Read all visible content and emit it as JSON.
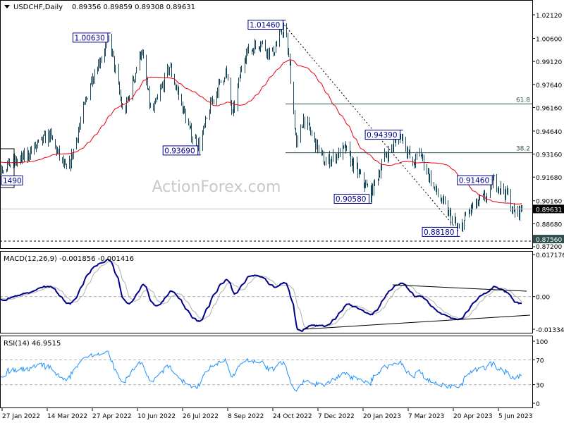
{
  "chart_data": {
    "type": "candlestick-ohlc",
    "symbol_header": "USDCHF,Daily",
    "ohlc_header": "0.89356 0.89859 0.89308 0.89631",
    "last_price": 0.89631,
    "last_price_label": "0.89631",
    "watermark": "ActionForex.com",
    "price_axis": {
      "ticks": [
        "1.02120",
        "1.00600",
        "0.99120",
        "0.97640",
        "0.96160",
        "0.94640",
        "0.93160",
        "0.91680",
        "0.90160",
        "0.88680",
        "0.87200"
      ],
      "range": [
        0.872,
        1.0212
      ]
    },
    "x_ticks": [
      "27 Jan 2022",
      "14 Mar 2022",
      "27 Apr 2022",
      "10 Jun 2022",
      "26 Jul 2022",
      "8 Sep 2022",
      "24 Oct 2022",
      "7 Dec 2022",
      "20 Jan 2023",
      "7 Mar 2023",
      "20 Apr 2023",
      "5 Jun 2023"
    ],
    "price_path": [
      [
        "2022-01-18",
        0.927
      ],
      [
        "2022-01-25",
        0.923
      ],
      [
        "2022-02-15",
        0.928
      ],
      [
        "2022-03-15",
        0.944
      ],
      [
        "2022-04-02",
        0.919
      ],
      [
        "2022-04-26",
        0.98
      ],
      [
        "2022-05-14",
        1.0063
      ],
      [
        "2022-05-28",
        0.956
      ],
      [
        "2022-06-15",
        0.999
      ],
      [
        "2022-06-25",
        0.956
      ],
      [
        "2022-07-13",
        0.988
      ],
      [
        "2022-08-03",
        0.945
      ],
      [
        "2022-08-12",
        0.9369
      ],
      [
        "2022-08-24",
        0.965
      ],
      [
        "2022-09-07",
        0.985
      ],
      [
        "2022-09-14",
        0.956
      ],
      [
        "2022-09-25",
        0.995
      ],
      [
        "2022-10-12",
        1.004
      ],
      [
        "2022-10-23",
        0.995
      ],
      [
        "2022-11-05",
        1.0146
      ],
      [
        "2022-11-10",
        0.988
      ],
      [
        "2022-11-17",
        0.936
      ],
      [
        "2022-11-24",
        0.955
      ],
      [
        "2022-12-15",
        0.926
      ],
      [
        "2023-01-05",
        0.935
      ],
      [
        "2023-01-12",
        0.925
      ],
      [
        "2023-01-30",
        0.9058
      ],
      [
        "2023-02-13",
        0.93
      ],
      [
        "2023-03-02",
        0.9439
      ],
      [
        "2023-03-13",
        0.924
      ],
      [
        "2023-03-20",
        0.933
      ],
      [
        "2023-04-03",
        0.91
      ],
      [
        "2023-04-21",
        0.89
      ],
      [
        "2023-04-28",
        0.8818
      ],
      [
        "2023-05-08",
        0.895
      ],
      [
        "2023-05-26",
        0.905
      ],
      [
        "2023-06-02",
        0.9146
      ],
      [
        "2023-06-16",
        0.905
      ],
      [
        "2023-06-22",
        0.893
      ],
      [
        "2023-06-30",
        0.8963
      ]
    ],
    "swing_labels": [
      {
        "text": "1.00630",
        "date": "2022-05-14",
        "price": 1.0063
      },
      {
        "text": "1.01460",
        "date": "2022-11-05",
        "price": 1.0146
      },
      {
        "text": "0.93690",
        "date": "2022-08-12",
        "price": 0.9369
      },
      {
        "text": "0.94390",
        "date": "2023-03-02",
        "price": 0.9439
      },
      {
        "text": "0.90580",
        "date": "2023-01-30",
        "price": 0.9058
      },
      {
        "text": "0.91460",
        "date": "2023-06-02",
        "price": 0.9146
      },
      {
        "text": "0.88180",
        "date": "2023-04-28",
        "price": 0.8818
      },
      {
        "text": "1490",
        "date": "2022-01-25",
        "price": 0.9149
      }
    ],
    "fib_levels": [
      {
        "label": "61.8",
        "price": 0.9639
      },
      {
        "label": "38.2",
        "price": 0.9325
      }
    ],
    "support_level": {
      "price": 0.8756,
      "label": "0.87560"
    },
    "moving_average": {
      "period": 50,
      "color": "#e8000b"
    },
    "macd": {
      "header": "MACD(12,26,9) -0.001856 -0.001416",
      "ticks": [
        "0.017176",
        "0.00",
        "-0.01334"
      ],
      "range": [
        -0.01334,
        0.017176
      ],
      "line_color": "#00008b",
      "signal_color": "#b0b0b0"
    },
    "rsi": {
      "header": "RSI(14) 46.9515",
      "ticks": [
        "100",
        "70",
        "30",
        "0"
      ],
      "range": [
        0,
        100
      ],
      "color": "#1e90ff"
    },
    "colors": {
      "bars": "#1b4a5e",
      "label_border": "#00008b",
      "label_text": "#00008b",
      "fib": "#2f4f4f"
    }
  }
}
